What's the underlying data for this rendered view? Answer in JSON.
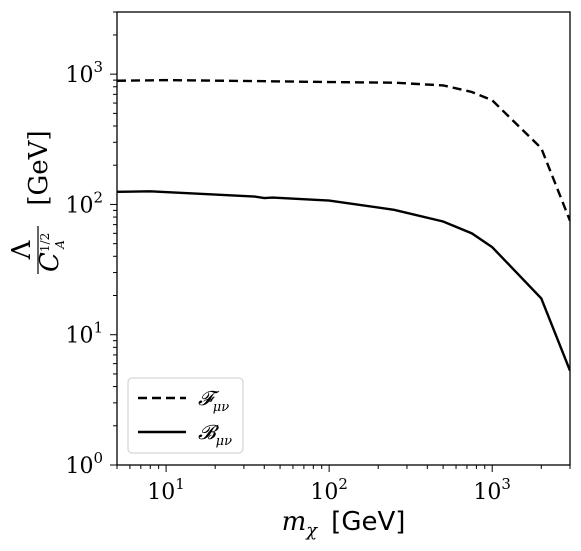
{
  "chart_data": {
    "type": "line",
    "xscale": "log",
    "yscale": "log",
    "xlim": [
      5,
      3000
    ],
    "ylim": [
      1,
      3000
    ],
    "x_ticks": [
      {
        "base": "10",
        "exp": "1",
        "value": 10
      },
      {
        "base": "10",
        "exp": "2",
        "value": 100
      },
      {
        "base": "10",
        "exp": "3",
        "value": 1000
      }
    ],
    "y_ticks": [
      {
        "base": "10",
        "exp": "0",
        "value": 1
      },
      {
        "base": "10",
        "exp": "1",
        "value": 10
      },
      {
        "base": "10",
        "exp": "2",
        "value": 100
      },
      {
        "base": "10",
        "exp": "3",
        "value": 1000
      }
    ],
    "xlabel": {
      "var": "m",
      "sub": "χ",
      "unit": "[GeV]"
    },
    "ylabel": {
      "num": "Λ",
      "den": "C",
      "den_sub": "A",
      "den_sup": "1/2",
      "unit": "[GeV]"
    },
    "grid": false,
    "legend_position": "lower-left",
    "series": [
      {
        "name": "𝓕",
        "name_sub": "μν",
        "style": "dashed",
        "color": "#000000",
        "x": [
          5,
          10,
          35,
          100,
          250,
          500,
          750,
          1000,
          2000,
          3000
        ],
        "y": [
          890,
          900,
          885,
          870,
          860,
          820,
          730,
          630,
          270,
          75
        ]
      },
      {
        "name": "𝓑",
        "name_sub": "μν",
        "style": "solid",
        "color": "#000000",
        "x": [
          5,
          8,
          20,
          35,
          40,
          45,
          100,
          250,
          500,
          750,
          1000,
          2000,
          3000
        ],
        "y": [
          125,
          126,
          119,
          115,
          112,
          113,
          107,
          91,
          74,
          60,
          47,
          19,
          5.3
        ]
      }
    ]
  }
}
